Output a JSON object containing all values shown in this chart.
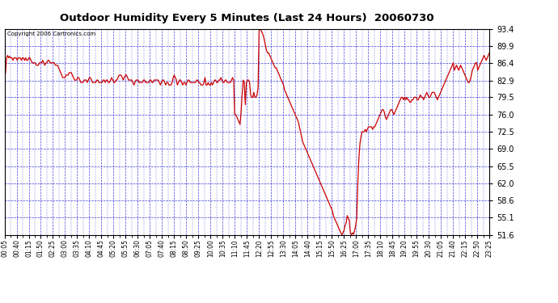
{
  "title": "Outdoor Humidity Every 5 Minutes (Last 24 Hours)  20060730",
  "copyright": "Copyright 2006 Cartronics.com",
  "y_ticks": [
    51.6,
    55.1,
    58.6,
    62.0,
    65.5,
    69.0,
    72.5,
    76.0,
    79.5,
    82.9,
    86.4,
    89.9,
    93.4
  ],
  "ylim": [
    51.6,
    93.4
  ],
  "line_color": "#cc0000",
  "bg_color": "#ffffff",
  "plot_bg_color": "#ffffff",
  "grid_color": "#0000cc",
  "x_labels": [
    "00:05",
    "00:40",
    "01:15",
    "01:50",
    "02:25",
    "03:00",
    "03:35",
    "04:10",
    "04:45",
    "05:20",
    "05:55",
    "06:30",
    "07:05",
    "07:40",
    "08:15",
    "08:50",
    "09:25",
    "10:00",
    "10:35",
    "11:10",
    "11:45",
    "12:20",
    "12:55",
    "13:30",
    "14:05",
    "14:40",
    "15:15",
    "15:50",
    "16:25",
    "17:00",
    "17:35",
    "18:10",
    "18:45",
    "19:20",
    "19:55",
    "20:30",
    "21:05",
    "21:40",
    "22:15",
    "22:50",
    "23:25"
  ],
  "humidity_data": [
    83.0,
    84.5,
    87.5,
    88.0,
    87.5,
    87.8,
    87.5,
    87.5,
    87.0,
    87.5,
    87.5,
    87.5,
    87.0,
    87.5,
    87.5,
    87.5,
    87.0,
    87.5,
    87.5,
    87.0,
    87.5,
    87.0,
    87.0,
    87.5,
    87.5,
    87.0,
    86.5,
    86.5,
    86.5,
    86.5,
    86.0,
    86.0,
    86.0,
    86.5,
    86.5,
    86.5,
    87.0,
    86.5,
    86.0,
    86.5,
    86.5,
    87.0,
    87.0,
    86.5,
    86.5,
    86.5,
    86.5,
    86.5,
    86.0,
    86.0,
    86.0,
    85.5,
    85.0,
    84.5,
    84.0,
    83.5,
    83.5,
    83.5,
    84.0,
    84.0,
    84.0,
    84.5,
    84.5,
    84.5,
    84.0,
    83.5,
    83.0,
    83.0,
    83.0,
    83.5,
    83.5,
    83.0,
    82.5,
    82.5,
    82.5,
    83.0,
    83.0,
    83.0,
    82.5,
    83.0,
    83.5,
    83.5,
    83.0,
    82.5,
    82.5,
    82.5,
    82.5,
    83.0,
    83.0,
    82.5,
    82.5,
    82.5,
    82.5,
    83.0,
    83.0,
    82.5,
    83.0,
    83.0,
    82.5,
    82.5,
    83.0,
    83.5,
    83.0,
    82.5,
    82.5,
    83.0,
    83.0,
    83.5,
    84.0,
    84.0,
    84.0,
    83.5,
    83.0,
    83.5,
    84.0,
    84.0,
    83.5,
    83.0,
    83.0,
    83.0,
    83.0,
    82.5,
    82.0,
    82.5,
    83.0,
    83.0,
    83.0,
    82.5,
    82.5,
    82.5,
    82.5,
    83.0,
    83.0,
    82.5,
    82.5,
    82.5,
    82.5,
    83.0,
    83.0,
    82.5,
    82.5,
    83.0,
    83.0,
    83.0,
    83.0,
    83.0,
    82.5,
    82.0,
    82.5,
    83.0,
    83.0,
    82.5,
    82.0,
    82.5,
    82.5,
    82.0,
    82.0,
    82.0,
    82.5,
    83.5,
    84.0,
    83.5,
    83.0,
    82.0,
    82.5,
    83.0,
    83.0,
    82.5,
    82.0,
    82.5,
    82.5,
    82.0,
    82.5,
    83.0,
    83.0,
    82.5,
    82.5,
    82.5,
    82.5,
    82.5,
    82.5,
    83.0,
    83.0,
    82.5,
    82.5,
    82.0,
    82.0,
    82.0,
    82.5,
    83.5,
    82.0,
    82.0,
    82.5,
    82.0,
    82.0,
    82.5,
    82.0,
    82.5,
    83.0,
    83.0,
    82.5,
    82.5,
    83.0,
    83.0,
    83.5,
    83.0,
    82.5,
    82.5,
    83.0,
    83.0,
    82.5,
    82.5,
    82.5,
    82.5,
    83.0,
    83.5,
    83.0,
    76.0,
    76.0,
    75.5,
    75.0,
    74.5,
    74.0,
    76.5,
    80.0,
    83.0,
    82.5,
    78.0,
    82.5,
    83.0,
    83.0,
    82.5,
    80.0,
    79.5,
    79.5,
    80.5,
    79.5,
    79.5,
    80.0,
    81.5,
    93.0,
    93.5,
    93.0,
    92.5,
    92.0,
    91.0,
    90.0,
    89.0,
    88.5,
    88.5,
    88.0,
    87.5,
    87.0,
    86.5,
    86.0,
    85.5,
    85.5,
    85.0,
    84.5,
    84.0,
    83.5,
    83.0,
    82.5,
    82.0,
    81.0,
    80.5,
    80.0,
    79.5,
    79.0,
    78.5,
    78.0,
    77.5,
    77.0,
    76.5,
    76.0,
    75.5,
    75.0,
    74.5,
    73.5,
    72.5,
    71.5,
    70.5,
    70.0,
    69.5,
    69.0,
    68.5,
    68.0,
    67.5,
    67.0,
    66.5,
    66.0,
    65.5,
    65.0,
    64.5,
    64.0,
    63.5,
    63.0,
    62.5,
    62.0,
    61.5,
    61.0,
    60.5,
    60.0,
    59.5,
    59.0,
    58.5,
    58.0,
    57.5,
    57.0,
    56.5,
    55.5,
    55.0,
    54.5,
    54.0,
    53.5,
    53.0,
    52.5,
    52.0,
    51.6,
    52.0,
    52.5,
    53.5,
    54.0,
    55.5,
    55.0,
    54.5,
    52.0,
    51.6,
    52.0,
    51.7,
    52.5,
    53.5,
    55.0,
    62.0,
    67.0,
    70.0,
    71.5,
    72.5,
    72.5,
    72.5,
    73.0,
    72.5,
    73.0,
    73.5,
    73.5,
    73.5,
    73.5,
    73.0,
    73.5,
    73.5,
    74.0,
    74.5,
    75.0,
    75.5,
    76.0,
    76.5,
    77.0,
    77.0,
    76.5,
    75.5,
    75.0,
    75.5,
    76.0,
    76.5,
    77.0,
    77.0,
    76.5,
    76.0,
    76.5,
    77.0,
    77.5,
    78.0,
    78.5,
    79.0,
    79.5,
    79.5,
    79.0,
    79.5,
    79.0,
    79.5,
    79.0,
    79.0,
    78.5,
    78.5,
    79.0,
    79.0,
    79.5,
    79.5,
    79.5,
    79.0,
    79.0,
    79.5,
    80.0,
    79.5,
    79.5,
    79.0,
    79.5,
    80.0,
    80.5,
    80.0,
    79.5,
    79.5,
    80.0,
    80.5,
    80.5,
    80.5,
    80.0,
    79.5,
    79.0,
    79.5,
    80.0,
    80.5,
    81.0,
    81.5,
    82.0,
    82.5,
    83.0,
    83.5,
    84.0,
    84.5,
    85.0,
    85.5,
    86.0,
    86.5,
    85.0,
    85.5,
    86.0,
    85.5,
    85.0,
    85.5,
    86.0,
    85.5,
    85.0,
    84.5,
    84.0,
    83.5,
    83.0,
    82.5,
    82.5,
    83.0,
    84.0,
    85.0,
    85.5,
    86.0,
    86.5,
    86.5,
    85.0,
    85.5,
    86.0,
    86.5,
    87.0,
    87.5,
    88.0,
    87.5,
    87.0,
    87.5,
    88.0,
    88.5
  ]
}
